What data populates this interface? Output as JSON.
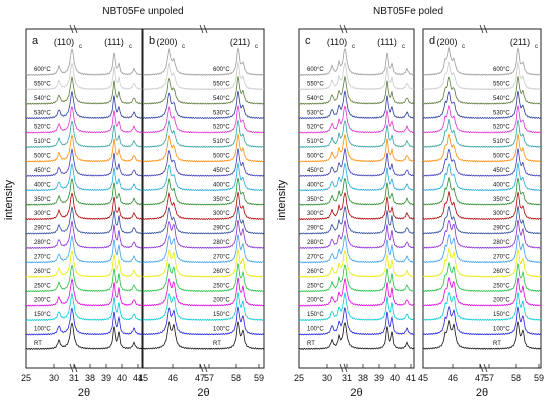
{
  "figure": {
    "ylabel": "intensity",
    "xlabel": "2θ"
  },
  "temperatures": [
    "600°C",
    "550°C",
    "540°C",
    "530°C",
    "520°C",
    "510°C",
    "500°C",
    "450°C",
    "400°C",
    "350°C",
    "300°C",
    "290°C",
    "280°C",
    "270°C",
    "260°C",
    "250°C",
    "200°C",
    "150°C",
    "100°C",
    "RT"
  ],
  "colors": [
    "#9a9a9a",
    "#c8c8c8",
    "#5a7a3a",
    "#2a3aa0",
    "#e030d0",
    "#30a0a0",
    "#ff8a00",
    "#3a3ab8",
    "#20a8d8",
    "#2a8a2a",
    "#b00000",
    "#2a4a9a",
    "#8a2ad8",
    "#3aa0f0",
    "#e8e800",
    "#20c040",
    "#e000e0",
    "#00c8d8",
    "#2020e0",
    "#111111"
  ],
  "chart_data": [
    {
      "type": "line",
      "panel": "a",
      "group_title": "NBT05Fe unpoled",
      "xlabel": "2θ",
      "ylabel": "intensity",
      "x_axis_break": [
        31,
        37
      ],
      "xticks": [
        "25",
        "30",
        "31",
        "38",
        "39",
        "40",
        "41"
      ],
      "peaks": [
        {
          "label": "(110)",
          "subscript": "c",
          "two_theta": 32.5
        },
        {
          "label": "(111)",
          "subscript": "c",
          "two_theta": 39.9
        }
      ]
    },
    {
      "type": "line",
      "panel": "b",
      "group_title": "NBT05Fe unpoled",
      "xlabel": "2θ",
      "ylabel": "intensity",
      "x_axis_break": [
        47,
        57
      ],
      "xticks": [
        "45",
        "46",
        "47",
        "57",
        "58",
        "59"
      ],
      "peaks": [
        {
          "label": "(200)",
          "subscript": "c",
          "two_theta": 46.3
        },
        {
          "label": "(211)",
          "subscript": "c",
          "two_theta": 57.8
        }
      ]
    },
    {
      "type": "line",
      "panel": "c",
      "group_title": "NBT05Fe poled",
      "xlabel": "2θ",
      "ylabel": "intensity",
      "x_axis_break": [
        31,
        37
      ],
      "xticks": [
        "25",
        "30",
        "31",
        "38",
        "39",
        "40",
        "41"
      ],
      "peaks": [
        {
          "label": "(110)",
          "subscript": "c",
          "two_theta": 32.5
        },
        {
          "label": "(111)",
          "subscript": "c",
          "two_theta": 39.9
        }
      ]
    },
    {
      "type": "line",
      "panel": "d",
      "group_title": "NBT05Fe poled",
      "xlabel": "2θ",
      "ylabel": "intensity",
      "x_axis_break": [
        47,
        57
      ],
      "xticks": [
        "45",
        "46",
        "47",
        "57",
        "58",
        "59"
      ],
      "peaks": [
        {
          "label": "(200)",
          "subscript": "c",
          "two_theta": 46.3
        },
        {
          "label": "(211)",
          "subscript": "c",
          "two_theta": 57.8
        }
      ]
    }
  ]
}
